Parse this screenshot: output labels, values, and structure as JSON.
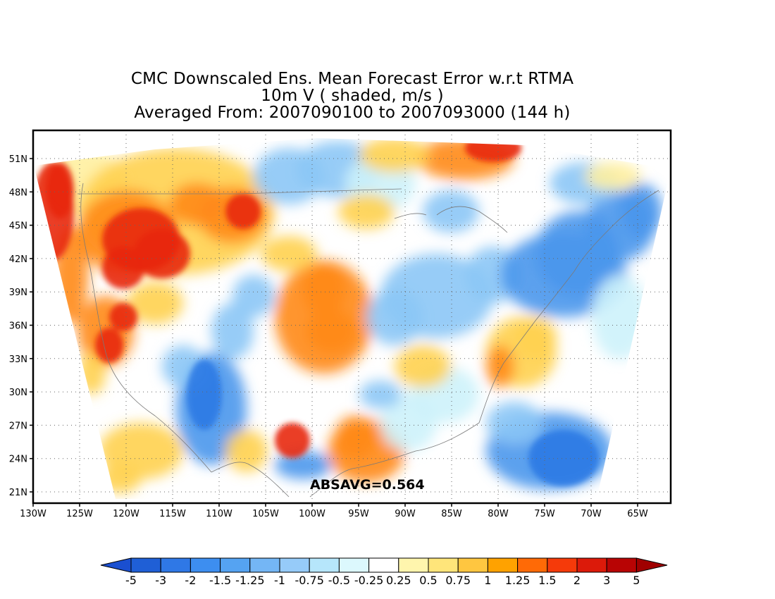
{
  "title": {
    "line1": "CMC Downscaled Ens. Mean Forecast Error w.r.t RTMA",
    "line2": "10m V ( shaded, m/s )",
    "line3": "Averaged From: 2007090100 to 2007093000 (144 h)"
  },
  "annotation": "ABSAVG=0.564",
  "axes": {
    "lat_labels": [
      "51N",
      "48N",
      "45N",
      "42N",
      "39N",
      "36N",
      "33N",
      "30N",
      "27N",
      "24N",
      "21N"
    ],
    "lon_labels": [
      "130W",
      "125W",
      "120W",
      "115W",
      "110W",
      "105W",
      "100W",
      "95W",
      "90W",
      "85W",
      "80W",
      "75W",
      "70W",
      "65W"
    ]
  },
  "colorbar": {
    "labels": [
      "-5",
      "-3",
      "-2",
      "-1.5",
      "-1.25",
      "-1",
      "-0.75",
      "-0.5",
      "-0.25",
      "0.25",
      "0.5",
      "0.75",
      "1",
      "1.25",
      "1.5",
      "2",
      "3",
      "5"
    ],
    "colors": [
      "#1f5fd6",
      "#2f78e6",
      "#3d8ef0",
      "#55a3f2",
      "#74b6f5",
      "#96cbf9",
      "#b6e6fb",
      "#dcf8fd",
      "#ffffff",
      "#fff5ad",
      "#ffe57a",
      "#ffc640",
      "#ffa200",
      "#ff6a06",
      "#f53a0a",
      "#dc1a0a",
      "#b80404"
    ],
    "low_extend_color": "#1a4fd0",
    "high_extend_color": "#a00000"
  },
  "field_palette": {
    "strong_pos": "#e8280a",
    "pos": "#ff8a1a",
    "weak_pos": "#ffd24f",
    "faint_pos": "#fff0a0",
    "neutral": "#ffffff",
    "faint_neg": "#cdf2fb",
    "weak_neg": "#8cc6f6",
    "neg": "#4a97ec",
    "strong_neg": "#2f7ae4"
  }
}
